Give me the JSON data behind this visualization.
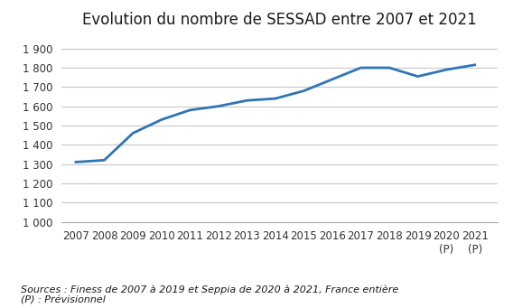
{
  "title": "Evolution du nombre de SESSAD entre 2007 et 2021",
  "years": [
    2007,
    2008,
    2009,
    2010,
    2011,
    2012,
    2013,
    2014,
    2015,
    2016,
    2017,
    2018,
    2019,
    2020,
    2021
  ],
  "values": [
    1310,
    1320,
    1460,
    1530,
    1580,
    1600,
    1630,
    1640,
    1680,
    1740,
    1800,
    1800,
    1755,
    1790,
    1815
  ],
  "line_color": "#2E75B6",
  "line_width": 2.0,
  "ylim": [
    1000,
    1960
  ],
  "yticks": [
    1000,
    1100,
    1200,
    1300,
    1400,
    1500,
    1600,
    1700,
    1800,
    1900
  ],
  "ytick_labels": [
    "1 000",
    "1 100",
    "1 200",
    "1 300",
    "1 400",
    "1 500",
    "1 600",
    "1 700",
    "1 800",
    "1 900"
  ],
  "source_text": "Sources : Finess de 2007 à 2019 et Seppia de 2020 à 2021, France entière\n(P) : Prévisionnel",
  "background_color": "#ffffff",
  "grid_color": "#c8c8c8",
  "title_fontsize": 12,
  "tick_fontsize": 8.5,
  "source_fontsize": 8
}
